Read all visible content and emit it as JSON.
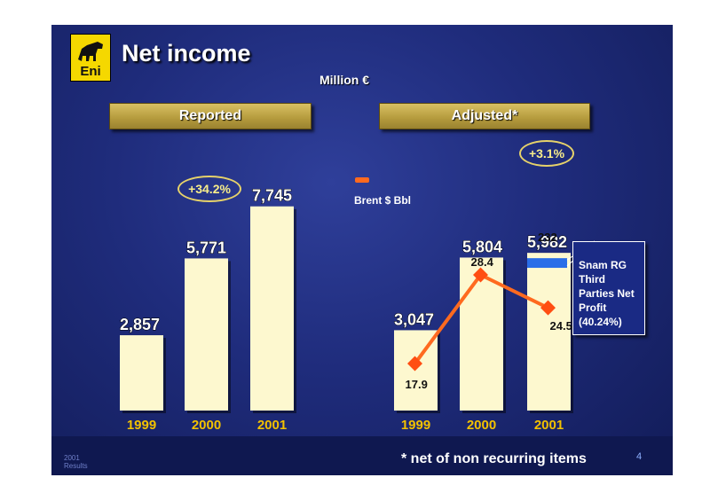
{
  "header": {
    "title": "Net income",
    "unit": "Million €",
    "logo_text": "Eni"
  },
  "panels": {
    "reported_label": "Reported",
    "adjusted_label": "Adjusted*"
  },
  "badges": {
    "reported_growth": "+34.2%",
    "adjusted_growth": "+3.1%"
  },
  "legend": {
    "brent_label": "Brent $ Bbl"
  },
  "callout": {
    "text": "Snam RG\nThird\nParties Net\nProfit\n(40.24%)"
  },
  "footer": {
    "note": "* net of non recurring items",
    "page": "4",
    "results": "2001\nResults"
  },
  "colors": {
    "bar": "#fdf8cf",
    "year_label": "#f2c100",
    "brent_line": "#ff6a1f",
    "brent_marker": "#ff4e12",
    "snam_segment": "#2a6ee8"
  },
  "chart_data": [
    {
      "type": "bar",
      "title": "Reported",
      "categories": [
        "1999",
        "2000",
        "2001"
      ],
      "values": [
        2857,
        5771,
        7745
      ],
      "labels": [
        "2,857",
        "5,771",
        "7,745"
      ],
      "ylim": [
        0,
        8500
      ]
    },
    {
      "type": "bar",
      "title": "Adjusted*",
      "categories": [
        "1999",
        "2000",
        "2001"
      ],
      "values": [
        3047,
        5804,
        5982
      ],
      "labels": [
        "3,047",
        "5,804",
        "5,982"
      ],
      "segment": {
        "category": "2001",
        "value": 232,
        "label": "232"
      },
      "ylim": [
        0,
        8500
      ],
      "line_series": {
        "name": "Brent $ Bbl",
        "values": [
          17.9,
          28.4,
          24.5
        ],
        "labels": [
          "17.9",
          "28.4",
          "24.5"
        ],
        "ylim": [
          12,
          35
        ]
      }
    }
  ]
}
